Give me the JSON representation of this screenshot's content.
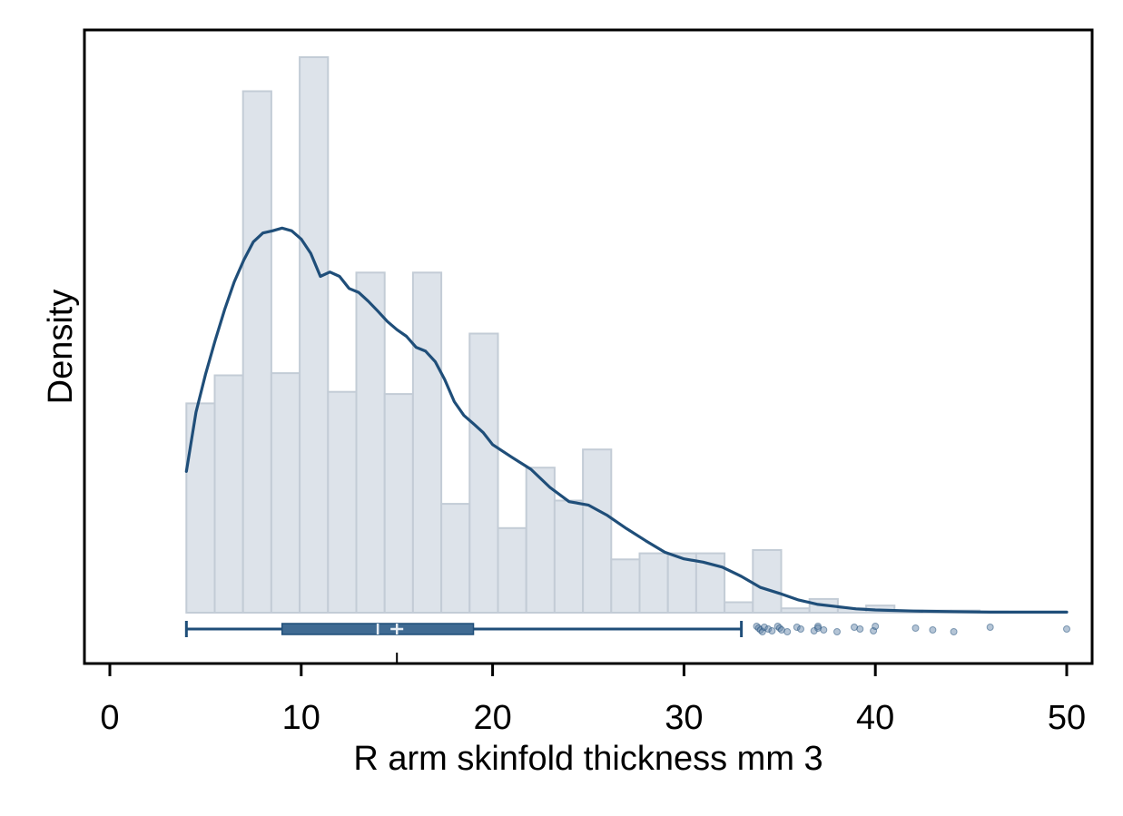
{
  "chart_data": {
    "type": "histogram",
    "title": "",
    "xlabel": "R arm skinfold thickness mm 3",
    "ylabel": "Density",
    "xlim": [
      -1.4,
      51.3
    ],
    "x_ticks": [
      0,
      10,
      20,
      30,
      40,
      50
    ],
    "x_tick_labels": [
      "0",
      "10",
      "20",
      "30",
      "40",
      "50"
    ],
    "y_ticks_shown": false,
    "grid": false,
    "legend": "none",
    "histogram": {
      "bin_width": 1.48,
      "bins": [
        {
          "x0": 4.0,
          "x1": 5.48,
          "density": 0.0381
        },
        {
          "x0": 5.48,
          "x1": 6.96,
          "density": 0.0432
        },
        {
          "x0": 6.96,
          "x1": 8.44,
          "density": 0.0949
        },
        {
          "x0": 8.44,
          "x1": 9.92,
          "density": 0.0436
        },
        {
          "x0": 9.92,
          "x1": 11.4,
          "density": 0.1011
        },
        {
          "x0": 11.4,
          "x1": 12.88,
          "density": 0.0402
        },
        {
          "x0": 12.88,
          "x1": 14.36,
          "density": 0.0619
        },
        {
          "x0": 14.36,
          "x1": 15.84,
          "density": 0.0398
        },
        {
          "x0": 15.84,
          "x1": 17.32,
          "density": 0.0619
        },
        {
          "x0": 17.32,
          "x1": 18.8,
          "density": 0.0198
        },
        {
          "x0": 18.8,
          "x1": 20.28,
          "density": 0.0508
        },
        {
          "x0": 20.28,
          "x1": 21.76,
          "density": 0.0154
        },
        {
          "x0": 21.76,
          "x1": 23.24,
          "density": 0.0264
        },
        {
          "x0": 23.24,
          "x1": 24.72,
          "density": 0.0204
        },
        {
          "x0": 24.72,
          "x1": 26.2,
          "density": 0.0297
        },
        {
          "x0": 26.2,
          "x1": 27.68,
          "density": 0.0097
        },
        {
          "x0": 27.68,
          "x1": 29.16,
          "density": 0.0108
        },
        {
          "x0": 29.16,
          "x1": 30.64,
          "density": 0.0108
        },
        {
          "x0": 30.64,
          "x1": 32.12,
          "density": 0.0108
        },
        {
          "x0": 32.12,
          "x1": 33.6,
          "density": 0.0019
        },
        {
          "x0": 33.6,
          "x1": 35.08,
          "density": 0.0114
        },
        {
          "x0": 35.08,
          "x1": 36.56,
          "density": 0.0008
        },
        {
          "x0": 36.56,
          "x1": 38.04,
          "density": 0.0025
        },
        {
          "x0": 38.04,
          "x1": 39.52,
          "density": 0.0008
        },
        {
          "x0": 39.52,
          "x1": 41.0,
          "density": 0.0013
        },
        {
          "x0": 41.0,
          "x1": 42.48,
          "density": 0.0004
        },
        {
          "x0": 42.48,
          "x1": 43.96,
          "density": 0.0004
        },
        {
          "x0": 43.96,
          "x1": 45.44,
          "density": 0.0004
        },
        {
          "x0": 45.44,
          "x1": 46.92,
          "density": 0.0002
        },
        {
          "x0": 46.92,
          "x1": 48.4,
          "density": 0.0001
        },
        {
          "x0": 48.4,
          "x1": 49.88,
          "density": 0.0001
        }
      ]
    },
    "kde": {
      "x": [
        4.0,
        4.5,
        5.0,
        5.5,
        6.0,
        6.5,
        7.0,
        7.5,
        8.0,
        8.5,
        9.0,
        9.5,
        10.0,
        10.5,
        11.0,
        11.5,
        12.0,
        12.5,
        13.0,
        13.5,
        14.0,
        14.5,
        15.0,
        15.5,
        16.0,
        16.5,
        17.0,
        17.5,
        18.0,
        18.5,
        19.0,
        19.5,
        20.0,
        21.0,
        22.0,
        23.0,
        24.0,
        25.0,
        26.0,
        27.0,
        28.0,
        29.0,
        30.0,
        31.0,
        32.0,
        33.0,
        34.0,
        35.0,
        36.0,
        37.0,
        38.0,
        39.0,
        40.0,
        42.0,
        44.0,
        46.0,
        48.0,
        50.0
      ],
      "y": [
        0.0257,
        0.0365,
        0.0434,
        0.0495,
        0.0552,
        0.0602,
        0.0642,
        0.0675,
        0.0691,
        0.0695,
        0.07,
        0.0695,
        0.068,
        0.0654,
        0.0612,
        0.062,
        0.0612,
        0.059,
        0.0583,
        0.0567,
        0.0549,
        0.053,
        0.0515,
        0.0503,
        0.0483,
        0.0476,
        0.0457,
        0.0424,
        0.0384,
        0.0359,
        0.0344,
        0.0328,
        0.0306,
        0.0283,
        0.0261,
        0.0228,
        0.0202,
        0.0196,
        0.0177,
        0.0153,
        0.0131,
        0.011,
        0.0098,
        0.0092,
        0.0083,
        0.0066,
        0.0046,
        0.0035,
        0.0023,
        0.0015,
        0.0011,
        0.0007,
        0.0005,
        0.0003,
        0.0002,
        0.0001,
        0.0001,
        0.0001
      ]
    },
    "boxplot": {
      "whisker_low": 4,
      "q1": 9,
      "median": 14,
      "mean": 15,
      "q3": 19,
      "whisker_high": 33,
      "outliers": [
        33.8,
        33.9,
        34.0,
        34.1,
        34.2,
        34.4,
        34.6,
        34.9,
        35.0,
        35.1,
        35.4,
        35.9,
        36.1,
        36.8,
        37.0,
        37.0,
        37.3,
        38.0,
        38.9,
        39.2,
        39.9,
        40.0,
        42.1,
        43.0,
        44.1,
        46.0,
        50.0
      ]
    },
    "colors": {
      "bar_fill": "#dde3ea",
      "bar_edge": "#c3ccd6",
      "kde_line": "#1f4e79",
      "box_fill": "#3f6a92",
      "whisker": "#1f4e79",
      "outlier": "#5a7fa3"
    }
  }
}
